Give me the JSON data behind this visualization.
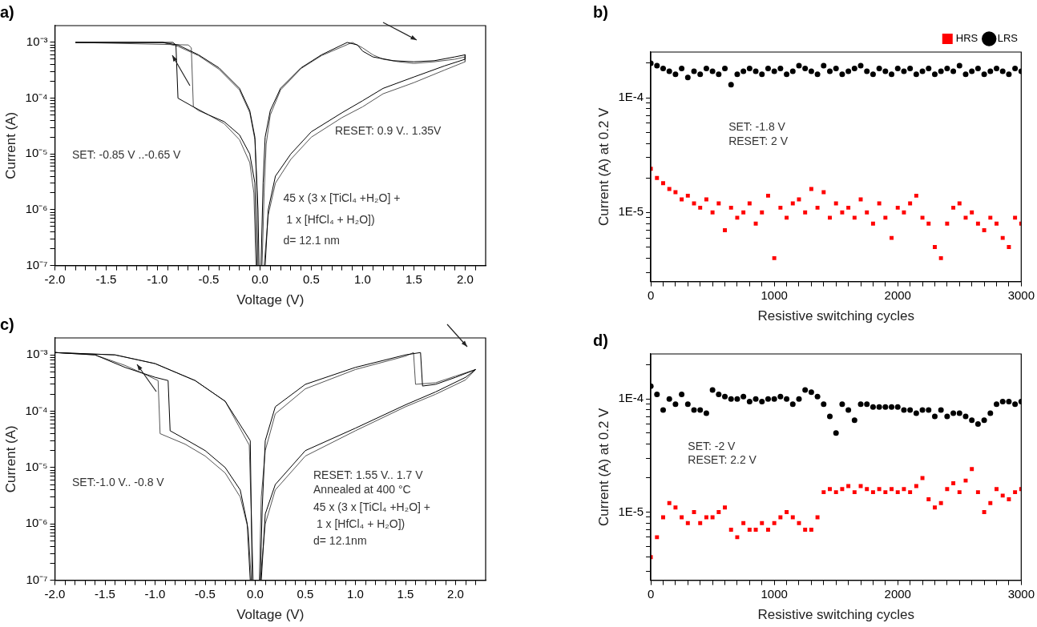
{
  "chart_data": [
    {
      "type": "line",
      "title": "a)",
      "xlabel": "Voltage (V)",
      "ylabel": "Current (A)",
      "log": "y",
      "grid": false,
      "line_style": "solid",
      "marker": "none",
      "xlim": [
        -2,
        2.2
      ],
      "ylim": [
        1e-07,
        0.002
      ],
      "xticks": [
        {
          "value": -2,
          "label": "-2.0"
        },
        {
          "value": -1.9,
          "label": null
        },
        {
          "value": -1.8,
          "label": null
        },
        {
          "value": -1.7,
          "label": null
        },
        {
          "value": -1.6,
          "label": null
        },
        {
          "value": -1.5,
          "label": "-1.5"
        },
        {
          "value": -1.4,
          "label": null
        },
        {
          "value": -1.3,
          "label": null
        },
        {
          "value": -1.2,
          "label": null
        },
        {
          "value": -1.1,
          "label": null
        },
        {
          "value": -1,
          "label": "-1.0"
        },
        {
          "value": -0.9,
          "label": null
        },
        {
          "value": -0.8,
          "label": null
        },
        {
          "value": -0.7,
          "label": null
        },
        {
          "value": -0.6,
          "label": null
        },
        {
          "value": -0.5,
          "label": "-0.5"
        },
        {
          "value": -0.4,
          "label": null
        },
        {
          "value": -0.3,
          "label": null
        },
        {
          "value": -0.2,
          "label": null
        },
        {
          "value": -0.1,
          "label": null
        },
        {
          "value": 0,
          "label": "0.0"
        },
        {
          "value": 0.1,
          "label": null
        },
        {
          "value": 0.2,
          "label": null
        },
        {
          "value": 0.3,
          "label": null
        },
        {
          "value": 0.4,
          "label": null
        },
        {
          "value": 0.5,
          "label": "0.5"
        },
        {
          "value": 0.6,
          "label": null
        },
        {
          "value": 0.7,
          "label": null
        },
        {
          "value": 0.8,
          "label": null
        },
        {
          "value": 0.9,
          "label": null
        },
        {
          "value": 1,
          "label": "1.0"
        },
        {
          "value": 1.1,
          "label": null
        },
        {
          "value": 1.2,
          "label": null
        },
        {
          "value": 1.3,
          "label": null
        },
        {
          "value": 1.4,
          "label": null
        },
        {
          "value": 1.5,
          "label": "1.5"
        },
        {
          "value": 1.6,
          "label": null
        },
        {
          "value": 1.7,
          "label": null
        },
        {
          "value": 1.8,
          "label": null
        },
        {
          "value": 1.9,
          "label": null
        },
        {
          "value": 2,
          "label": "2.0"
        },
        {
          "value": 2.1,
          "label": null
        }
      ],
      "yticks": [
        {
          "value": 1e-07,
          "label": "10⁻⁷"
        },
        {
          "value": 2e-07,
          "label": null
        },
        {
          "value": 3e-07,
          "label": null
        },
        {
          "value": 4e-07,
          "label": null
        },
        {
          "value": 5e-07,
          "label": null
        },
        {
          "value": 6e-07,
          "label": null
        },
        {
          "value": 7e-07,
          "label": null
        },
        {
          "value": 8e-07,
          "label": null
        },
        {
          "value": 9e-07,
          "label": null
        },
        {
          "value": 1e-06,
          "label": "10⁻⁶"
        },
        {
          "value": 2e-06,
          "label": null
        },
        {
          "value": 3e-06,
          "label": null
        },
        {
          "value": 4e-06,
          "label": null
        },
        {
          "value": 5e-06,
          "label": null
        },
        {
          "value": 6e-06,
          "label": null
        },
        {
          "value": 7e-06,
          "label": null
        },
        {
          "value": 8e-06,
          "label": null
        },
        {
          "value": 9e-06,
          "label": null
        },
        {
          "value": 1e-05,
          "label": "10⁻⁵"
        },
        {
          "value": 2e-05,
          "label": null
        },
        {
          "value": 3e-05,
          "label": null
        },
        {
          "value": 4e-05,
          "label": null
        },
        {
          "value": 5e-05,
          "label": null
        },
        {
          "value": 6e-05,
          "label": null
        },
        {
          "value": 7e-05,
          "label": null
        },
        {
          "value": 8e-05,
          "label": null
        },
        {
          "value": 9e-05,
          "label": null
        },
        {
          "value": 0.0001,
          "label": "10⁻⁴"
        },
        {
          "value": 0.0002,
          "label": null
        },
        {
          "value": 0.0003,
          "label": null
        },
        {
          "value": 0.0004,
          "label": null
        },
        {
          "value": 0.0005,
          "label": null
        },
        {
          "value": 0.0006,
          "label": null
        },
        {
          "value": 0.0007,
          "label": null
        },
        {
          "value": 0.0008,
          "label": null
        },
        {
          "value": 0.0009,
          "label": null
        },
        {
          "value": 0.001,
          "label": "10⁻³"
        }
      ],
      "annotations": [
        "SET: -0.85 V ..-0.65 V",
        "RESET: 0.9 V.. 1.35V",
        "45 x (3 x [TiCl₄ +H₂O] +",
        " 1 x [HfCl₄ + H₂O])",
        "d= 12.1 nm"
      ],
      "series": [
        {
          "color": "#000000",
          "x": [
            0.01,
            0.03,
            0.05,
            0.1,
            0.2,
            0.4,
            0.6,
            0.85,
            0.95,
            1.0,
            1.1,
            1.3,
            1.5,
            1.7,
            1.9,
            2.0,
            2.0,
            1.8,
            1.5,
            1.2,
            1.0,
            0.8,
            0.5,
            0.3,
            0.15,
            0.08,
            0.05,
            -0.03,
            -0.05,
            -0.1,
            -0.2,
            -0.35,
            -0.5,
            -0.65,
            -0.8,
            -0.82,
            -0.85,
            -1.8,
            -0.95,
            -0.8,
            -0.6,
            -0.4,
            -0.2,
            -0.1,
            -0.05,
            -0.02,
            -0.01
          ],
          "values": [
            1e-07,
            3e-06,
            2e-05,
            6e-05,
            0.00015,
            0.00035,
            0.0006,
            0.001,
            0.0009,
            0.0007,
            0.00055,
            0.00047,
            0.00045,
            0.00047,
            0.00055,
            0.0006,
            0.0005,
            0.00038,
            0.00024,
            0.00015,
            9e-05,
            5.5e-05,
            2.5e-05,
            1e-05,
            4e-06,
            1e-06,
            1e-07,
            1e-07,
            3e-06,
            1e-05,
            2.2e-05,
            3.8e-05,
            5e-05,
            7e-05,
            0.0001,
            0.0009,
            0.001,
            0.001,
            0.001,
            0.0009,
            0.0006,
            0.00035,
            0.00015,
            6e-05,
            2e-05,
            1e-06,
            1e-07
          ]
        },
        {
          "color": "#555555",
          "x": [
            0.02,
            0.04,
            0.06,
            0.1,
            0.2,
            0.4,
            0.6,
            0.9,
            1.0,
            1.1,
            1.2,
            1.35,
            1.5,
            1.7,
            1.9,
            2.0,
            2.0,
            1.8,
            1.5,
            1.2,
            1.0,
            0.8,
            0.5,
            0.3,
            0.15,
            0.08,
            0.04,
            -0.04,
            -0.06,
            -0.1,
            -0.2,
            -0.35,
            -0.5,
            -0.6,
            -0.65,
            -0.67,
            -0.7,
            -1.8,
            -0.95,
            -0.8,
            -0.6,
            -0.4,
            -0.2,
            -0.1,
            -0.05,
            -0.03,
            -0.02
          ],
          "values": [
            1e-07,
            2e-06,
            1.5e-05,
            5e-05,
            0.00014,
            0.00034,
            0.00058,
            0.001,
            0.0008,
            0.0006,
            0.0005,
            0.00045,
            0.00042,
            0.00045,
            0.0005,
            0.00055,
            0.00045,
            0.00032,
            0.00019,
            0.00012,
            7e-05,
            4.5e-05,
            2e-05,
            8e-06,
            3e-06,
            8e-07,
            1e-07,
            1e-07,
            2e-06,
            7e-06,
            1.8e-05,
            3.5e-05,
            5e-05,
            6e-05,
            7e-05,
            0.0008,
            0.0009,
            0.001,
            0.001,
            0.00085,
            0.00058,
            0.00033,
            0.00014,
            5.5e-05,
            1.8e-05,
            2e-06,
            1e-07
          ]
        }
      ]
    },
    {
      "type": "scatter",
      "title": "b)",
      "xlabel": "Resistive switching cycles",
      "ylabel": "Current (A) at 0.2 V",
      "log": "y",
      "grid": false,
      "legend": "top right",
      "xlim": [
        0,
        3000
      ],
      "ylim": [
        2.5e-06,
        0.00025
      ],
      "xticks": [
        0,
        {
          "value": 100,
          "label": null
        },
        {
          "value": 200,
          "label": null
        },
        {
          "value": 300,
          "label": null
        },
        {
          "value": 400,
          "label": null
        },
        {
          "value": 500,
          "label": null
        },
        {
          "value": 600,
          "label": null
        },
        {
          "value": 700,
          "label": null
        },
        {
          "value": 800,
          "label": null
        },
        {
          "value": 900,
          "label": null
        },
        1000,
        {
          "value": 1100,
          "label": null
        },
        {
          "value": 1200,
          "label": null
        },
        {
          "value": 1300,
          "label": null
        },
        {
          "value": 1400,
          "label": null
        },
        {
          "value": 1500,
          "label": null
        },
        {
          "value": 1600,
          "label": null
        },
        {
          "value": 1700,
          "label": null
        },
        {
          "value": 1800,
          "label": null
        },
        {
          "value": 1900,
          "label": null
        },
        2000,
        {
          "value": 2100,
          "label": null
        },
        {
          "value": 2200,
          "label": null
        },
        {
          "value": 2300,
          "label": null
        },
        {
          "value": 2400,
          "label": null
        },
        {
          "value": 2500,
          "label": null
        },
        {
          "value": 2600,
          "label": null
        },
        {
          "value": 2700,
          "label": null
        },
        {
          "value": 2800,
          "label": null
        },
        {
          "value": 2900,
          "label": null
        },
        3000
      ],
      "yticks": [
        {
          "value": 3e-06,
          "label": null
        },
        {
          "value": 4e-06,
          "label": null
        },
        {
          "value": 5e-06,
          "label": null
        },
        {
          "value": 6e-06,
          "label": null
        },
        {
          "value": 7e-06,
          "label": null
        },
        {
          "value": 8e-06,
          "label": null
        },
        {
          "value": 9e-06,
          "label": null
        },
        {
          "value": 1e-05,
          "label": "1E-5"
        },
        {
          "value": 2e-05,
          "label": null
        },
        {
          "value": 3e-05,
          "label": null
        },
        {
          "value": 4e-05,
          "label": null
        },
        {
          "value": 5e-05,
          "label": null
        },
        {
          "value": 6e-05,
          "label": null
        },
        {
          "value": 7e-05,
          "label": null
        },
        {
          "value": 8e-05,
          "label": null
        },
        {
          "value": 9e-05,
          "label": null
        },
        {
          "value": 0.0001,
          "label": "1E-4"
        },
        {
          "value": 0.0002,
          "label": null
        }
      ],
      "annotations": [
        "SET: -1.8 V",
        "RESET: 2 V"
      ],
      "x": [
        0,
        50,
        100,
        150,
        200,
        250,
        300,
        350,
        400,
        450,
        500,
        550,
        600,
        650,
        700,
        750,
        800,
        850,
        900,
        950,
        1000,
        1050,
        1100,
        1150,
        1200,
        1250,
        1300,
        1350,
        1400,
        1450,
        1500,
        1550,
        1600,
        1650,
        1700,
        1750,
        1800,
        1850,
        1900,
        1950,
        2000,
        2050,
        2100,
        2150,
        2200,
        2250,
        2300,
        2350,
        2400,
        2450,
        2500,
        2550,
        2600,
        2650,
        2700,
        2750,
        2800,
        2850,
        2900,
        2950,
        3000
      ],
      "series": [
        {
          "name": "HRS",
          "color": "#ff0000",
          "marker": "square",
          "values": [
            2.4e-05,
            2e-05,
            1.8e-05,
            1.6e-05,
            1.5e-05,
            1.3e-05,
            1.4e-05,
            1.2e-05,
            1.1e-05,
            1.3e-05,
            1e-05,
            1.2e-05,
            7e-06,
            1.1e-05,
            9e-06,
            1e-05,
            1.2e-05,
            8e-06,
            1e-05,
            1.4e-05,
            4e-06,
            1.1e-05,
            9e-06,
            1.2e-05,
            1.3e-05,
            1e-05,
            1.6e-05,
            1.1e-05,
            1.5e-05,
            9e-06,
            1.2e-05,
            1e-05,
            1.1e-05,
            9e-06,
            1.3e-05,
            1e-05,
            8e-06,
            1.2e-05,
            9e-06,
            6e-06,
            1.1e-05,
            1e-05,
            1.2e-05,
            1.4e-05,
            9e-06,
            8e-06,
            5e-06,
            4e-06,
            8e-06,
            1.1e-05,
            1.2e-05,
            9e-06,
            1e-05,
            8e-06,
            7e-06,
            9e-06,
            8e-06,
            6e-06,
            5e-06,
            9e-06,
            8e-06
          ]
        },
        {
          "name": "LRS",
          "color": "#000000",
          "marker": "circle",
          "values": [
            0.0002,
            0.00019,
            0.00018,
            0.00017,
            0.00016,
            0.00018,
            0.00015,
            0.00017,
            0.00016,
            0.00018,
            0.00017,
            0.00016,
            0.00018,
            0.00013,
            0.00016,
            0.00017,
            0.00018,
            0.00017,
            0.00016,
            0.00018,
            0.00017,
            0.00018,
            0.00016,
            0.00017,
            0.00019,
            0.00018,
            0.00017,
            0.00016,
            0.00019,
            0.00017,
            0.00018,
            0.00016,
            0.00017,
            0.00018,
            0.00019,
            0.00017,
            0.00016,
            0.00018,
            0.00017,
            0.00016,
            0.00018,
            0.00017,
            0.00018,
            0.00016,
            0.00017,
            0.00018,
            0.00016,
            0.00017,
            0.00018,
            0.00017,
            0.00019,
            0.00016,
            0.00017,
            0.00018,
            0.00016,
            0.00017,
            0.00018,
            0.00017,
            0.00016,
            0.00018,
            0.00017
          ]
        }
      ]
    },
    {
      "type": "line",
      "title": "c)",
      "xlabel": "Voltage (V)",
      "ylabel": "Current (A)",
      "log": "y",
      "grid": false,
      "line_style": "solid",
      "marker": "none",
      "xlim": [
        -2,
        2.3
      ],
      "ylim": [
        1e-07,
        0.002
      ],
      "xticks": [
        {
          "value": -2,
          "label": "-2.0"
        },
        {
          "value": -1.9,
          "label": null
        },
        {
          "value": -1.8,
          "label": null
        },
        {
          "value": -1.7,
          "label": null
        },
        {
          "value": -1.6,
          "label": null
        },
        {
          "value": -1.5,
          "label": "-1.5"
        },
        {
          "value": -1.4,
          "label": null
        },
        {
          "value": -1.3,
          "label": null
        },
        {
          "value": -1.2,
          "label": null
        },
        {
          "value": -1.1,
          "label": null
        },
        {
          "value": -1,
          "label": "-1.0"
        },
        {
          "value": -0.9,
          "label": null
        },
        {
          "value": -0.8,
          "label": null
        },
        {
          "value": -0.7,
          "label": null
        },
        {
          "value": -0.6,
          "label": null
        },
        {
          "value": -0.5,
          "label": "-0.5"
        },
        {
          "value": -0.4,
          "label": null
        },
        {
          "value": -0.3,
          "label": null
        },
        {
          "value": -0.2,
          "label": null
        },
        {
          "value": -0.1,
          "label": null
        },
        {
          "value": 0,
          "label": "0.0"
        },
        {
          "value": 0.1,
          "label": null
        },
        {
          "value": 0.2,
          "label": null
        },
        {
          "value": 0.3,
          "label": null
        },
        {
          "value": 0.4,
          "label": null
        },
        {
          "value": 0.5,
          "label": "0.5"
        },
        {
          "value": 0.6,
          "label": null
        },
        {
          "value": 0.7,
          "label": null
        },
        {
          "value": 0.8,
          "label": null
        },
        {
          "value": 0.9,
          "label": null
        },
        {
          "value": 1,
          "label": "1.0"
        },
        {
          "value": 1.1,
          "label": null
        },
        {
          "value": 1.2,
          "label": null
        },
        {
          "value": 1.3,
          "label": null
        },
        {
          "value": 1.4,
          "label": null
        },
        {
          "value": 1.5,
          "label": "1.5"
        },
        {
          "value": 1.6,
          "label": null
        },
        {
          "value": 1.7,
          "label": null
        },
        {
          "value": 1.8,
          "label": null
        },
        {
          "value": 1.9,
          "label": null
        },
        {
          "value": 2,
          "label": "2.0"
        },
        {
          "value": 2.1,
          "label": null
        },
        {
          "value": 2.2,
          "label": null
        }
      ],
      "yticks": [
        {
          "value": 1e-07,
          "label": "10⁻⁷"
        },
        {
          "value": 2e-07,
          "label": null
        },
        {
          "value": 3e-07,
          "label": null
        },
        {
          "value": 4e-07,
          "label": null
        },
        {
          "value": 5e-07,
          "label": null
        },
        {
          "value": 6e-07,
          "label": null
        },
        {
          "value": 7e-07,
          "label": null
        },
        {
          "value": 8e-07,
          "label": null
        },
        {
          "value": 9e-07,
          "label": null
        },
        {
          "value": 1e-06,
          "label": "10⁻⁶"
        },
        {
          "value": 2e-06,
          "label": null
        },
        {
          "value": 3e-06,
          "label": null
        },
        {
          "value": 4e-06,
          "label": null
        },
        {
          "value": 5e-06,
          "label": null
        },
        {
          "value": 6e-06,
          "label": null
        },
        {
          "value": 7e-06,
          "label": null
        },
        {
          "value": 8e-06,
          "label": null
        },
        {
          "value": 9e-06,
          "label": null
        },
        {
          "value": 1e-05,
          "label": "10⁻⁵"
        },
        {
          "value": 2e-05,
          "label": null
        },
        {
          "value": 3e-05,
          "label": null
        },
        {
          "value": 4e-05,
          "label": null
        },
        {
          "value": 5e-05,
          "label": null
        },
        {
          "value": 6e-05,
          "label": null
        },
        {
          "value": 7e-05,
          "label": null
        },
        {
          "value": 8e-05,
          "label": null
        },
        {
          "value": 9e-05,
          "label": null
        },
        {
          "value": 0.0001,
          "label": "10⁻⁴"
        },
        {
          "value": 0.0002,
          "label": null
        },
        {
          "value": 0.0003,
          "label": null
        },
        {
          "value": 0.0004,
          "label": null
        },
        {
          "value": 0.0005,
          "label": null
        },
        {
          "value": 0.0006,
          "label": null
        },
        {
          "value": 0.0007,
          "label": null
        },
        {
          "value": 0.0008,
          "label": null
        },
        {
          "value": 0.0009,
          "label": null
        },
        {
          "value": 0.001,
          "label": "10⁻³"
        }
      ],
      "annotations": [
        "SET:-1.0 V.. -0.8 V",
        "RESET: 1.55 V.. 1.7 V",
        "Annealed at 400 °C",
        "45 x (3 x [TiCl₄ +H₂O] +",
        " 1 x [HfCl₄ + H₂O])",
        "d= 12.1nm"
      ],
      "series": [
        {
          "color": "#000000",
          "x": [
            0.05,
            0.07,
            0.1,
            0.2,
            0.5,
            1.0,
            1.5,
            1.65,
            1.67,
            1.8,
            2.0,
            2.2,
            2.1,
            1.8,
            1.5,
            1.0,
            0.5,
            0.2,
            0.1,
            0.06,
            -0.05,
            -0.08,
            -0.15,
            -0.3,
            -0.5,
            -0.7,
            -0.85,
            -0.87,
            -1.0,
            -1.3,
            -1.6,
            -2.0,
            -1.4,
            -1.0,
            -0.6,
            -0.3,
            -0.05,
            -0.03
          ],
          "values": [
            1e-07,
            2e-06,
            3e-05,
            0.00012,
            0.0003,
            0.0006,
            0.001,
            0.0011,
            0.00028,
            0.0003,
            0.0004,
            0.00055,
            0.0004,
            0.00022,
            0.00013,
            5e-05,
            2e-05,
            5e-06,
            1.5e-06,
            1e-07,
            1e-07,
            1e-06,
            4e-06,
            1e-05,
            2e-05,
            3.2e-05,
            4.5e-05,
            0.00035,
            0.0004,
            0.0006,
            0.001,
            0.0011,
            0.001,
            0.0007,
            0.00035,
            0.00015,
            3e-05,
            1e-07
          ]
        },
        {
          "color": "#555555",
          "x": [
            0.04,
            0.06,
            0.1,
            0.2,
            0.5,
            1.0,
            1.5,
            1.58,
            1.6,
            1.8,
            2.0,
            2.2,
            2.1,
            1.8,
            1.5,
            1.0,
            0.5,
            0.2,
            0.1,
            0.05,
            -0.04,
            -0.07,
            -0.15,
            -0.3,
            -0.5,
            -0.7,
            -0.95,
            -0.97,
            -1.1,
            -1.3,
            -1.6,
            -2.0,
            -1.4,
            -1.0,
            -0.6,
            -0.3,
            -0.06,
            -0.02
          ],
          "values": [
            1e-07,
            3e-06,
            2e-05,
            9e-05,
            0.00025,
            0.00055,
            0.00095,
            0.0011,
            0.0003,
            0.00032,
            0.00042,
            0.00055,
            0.00036,
            0.0002,
            0.00012,
            4.5e-05,
            1.6e-05,
            4e-06,
            1e-06,
            1e-07,
            1e-07,
            8e-07,
            3e-06,
            8e-06,
            1.6e-05,
            2.6e-05,
            4e-05,
            0.00035,
            0.00045,
            0.00065,
            0.001,
            0.0011,
            0.001,
            0.0007,
            0.00035,
            0.00015,
            2.5e-05,
            1e-07
          ]
        }
      ]
    },
    {
      "type": "scatter",
      "title": "d)",
      "xlabel": "Resistive switching cycles",
      "ylabel": "Current (A) at 0.2 V",
      "log": "y",
      "grid": false,
      "xlim": [
        0,
        3000
      ],
      "ylim": [
        2.5e-06,
        0.00025
      ],
      "xticks": [
        0,
        {
          "value": 100,
          "label": null
        },
        {
          "value": 200,
          "label": null
        },
        {
          "value": 300,
          "label": null
        },
        {
          "value": 400,
          "label": null
        },
        {
          "value": 500,
          "label": null
        },
        {
          "value": 600,
          "label": null
        },
        {
          "value": 700,
          "label": null
        },
        {
          "value": 800,
          "label": null
        },
        {
          "value": 900,
          "label": null
        },
        1000,
        {
          "value": 1100,
          "label": null
        },
        {
          "value": 1200,
          "label": null
        },
        {
          "value": 1300,
          "label": null
        },
        {
          "value": 1400,
          "label": null
        },
        {
          "value": 1500,
          "label": null
        },
        {
          "value": 1600,
          "label": null
        },
        {
          "value": 1700,
          "label": null
        },
        {
          "value": 1800,
          "label": null
        },
        {
          "value": 1900,
          "label": null
        },
        2000,
        {
          "value": 2100,
          "label": null
        },
        {
          "value": 2200,
          "label": null
        },
        {
          "value": 2300,
          "label": null
        },
        {
          "value": 2400,
          "label": null
        },
        {
          "value": 2500,
          "label": null
        },
        {
          "value": 2600,
          "label": null
        },
        {
          "value": 2700,
          "label": null
        },
        {
          "value": 2800,
          "label": null
        },
        {
          "value": 2900,
          "label": null
        },
        3000
      ],
      "yticks": [
        {
          "value": 3e-06,
          "label": null
        },
        {
          "value": 4e-06,
          "label": null
        },
        {
          "value": 5e-06,
          "label": null
        },
        {
          "value": 6e-06,
          "label": null
        },
        {
          "value": 7e-06,
          "label": null
        },
        {
          "value": 8e-06,
          "label": null
        },
        {
          "value": 9e-06,
          "label": null
        },
        {
          "value": 1e-05,
          "label": "1E-5"
        },
        {
          "value": 2e-05,
          "label": null
        },
        {
          "value": 3e-05,
          "label": null
        },
        {
          "value": 4e-05,
          "label": null
        },
        {
          "value": 5e-05,
          "label": null
        },
        {
          "value": 6e-05,
          "label": null
        },
        {
          "value": 7e-05,
          "label": null
        },
        {
          "value": 8e-05,
          "label": null
        },
        {
          "value": 9e-05,
          "label": null
        },
        {
          "value": 0.0001,
          "label": "1E-4"
        },
        {
          "value": 0.0002,
          "label": null
        }
      ],
      "annotations": [
        "SET: -2 V",
        "RESET: 2.2 V"
      ],
      "x": [
        0,
        50,
        100,
        150,
        200,
        250,
        300,
        350,
        400,
        450,
        500,
        550,
        600,
        650,
        700,
        750,
        800,
        850,
        900,
        950,
        1000,
        1050,
        1100,
        1150,
        1200,
        1250,
        1300,
        1350,
        1400,
        1450,
        1500,
        1550,
        1600,
        1650,
        1700,
        1750,
        1800,
        1850,
        1900,
        1950,
        2000,
        2050,
        2100,
        2150,
        2200,
        2250,
        2300,
        2350,
        2400,
        2450,
        2500,
        2550,
        2600,
        2650,
        2700,
        2750,
        2800,
        2850,
        2900,
        2950,
        3000
      ],
      "series": [
        {
          "color": "#ff0000",
          "marker": "square",
          "values": [
            4e-06,
            6e-06,
            9e-06,
            1.2e-05,
            1.1e-05,
            9e-06,
            8e-06,
            1e-05,
            8e-06,
            9e-06,
            9e-06,
            1e-05,
            1.1e-05,
            7e-06,
            6e-06,
            8e-06,
            7e-06,
            7e-06,
            8e-06,
            7e-06,
            8e-06,
            9e-06,
            1e-05,
            9e-06,
            8e-06,
            7e-06,
            7e-06,
            9e-06,
            1.5e-05,
            1.6e-05,
            1.5e-05,
            1.6e-05,
            1.7e-05,
            1.5e-05,
            1.7e-05,
            1.6e-05,
            1.5e-05,
            1.6e-05,
            1.5e-05,
            1.6e-05,
            1.5e-05,
            1.6e-05,
            1.5e-05,
            1.7e-05,
            2e-05,
            1.3e-05,
            1.1e-05,
            1.2e-05,
            1.6e-05,
            1.8e-05,
            1.5e-05,
            1.9e-05,
            2.4e-05,
            1.5e-05,
            1e-05,
            1.2e-05,
            1.6e-05,
            1.4e-05,
            1.3e-05,
            1.5e-05,
            1.6e-05
          ]
        },
        {
          "color": "#000000",
          "marker": "circle",
          "values": [
            0.00013,
            0.00011,
            8e-05,
            0.0001,
            9e-05,
            0.00011,
            9e-05,
            8e-05,
            8e-05,
            7.5e-05,
            0.00012,
            0.00011,
            0.000105,
            0.0001,
            0.0001,
            0.000105,
            9.5e-05,
            0.0001,
            9.5e-05,
            0.0001,
            0.0001,
            0.000105,
            0.0001,
            9e-05,
            0.0001,
            0.00012,
            0.000115,
            0.000105,
            9e-05,
            7e-05,
            5e-05,
            9e-05,
            8e-05,
            6.5e-05,
            9e-05,
            9e-05,
            8.5e-05,
            8.5e-05,
            8.5e-05,
            8.5e-05,
            8.5e-05,
            8e-05,
            8e-05,
            7.5e-05,
            8e-05,
            8e-05,
            7e-05,
            8e-05,
            7e-05,
            7.5e-05,
            7.5e-05,
            7e-05,
            6.5e-05,
            6e-05,
            6.5e-05,
            7.5e-05,
            9e-05,
            9.5e-05,
            9.5e-05,
            9e-05,
            9.5e-05
          ]
        }
      ]
    }
  ]
}
